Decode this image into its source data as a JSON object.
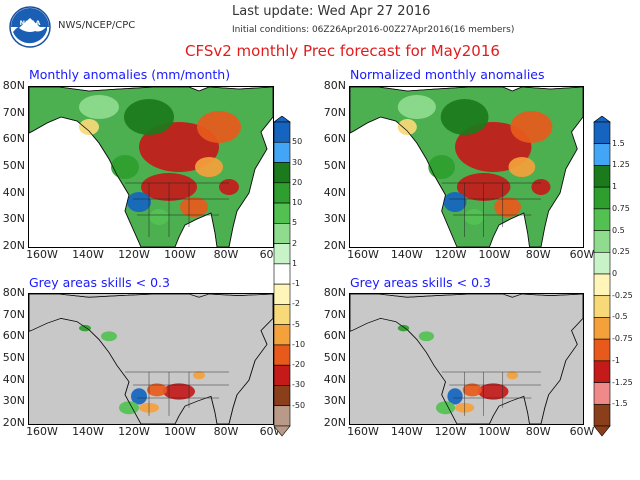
{
  "header": {
    "org": "NWS/NCEP/CPC",
    "last_update": "Last update: Wed Apr 27 2016",
    "initial_conditions": "Initial conditions: 06Z26Apr2016-00Z27Apr2016(16 members)",
    "main_title": "CFSv2 monthly Prec forecast for May2016"
  },
  "logo": {
    "text": "NOAA",
    "icon": "noaa-logo-icon"
  },
  "panels": [
    {
      "title": "Monthly anomalies (mm/month)"
    },
    {
      "title": "Normalized monthly anomalies"
    },
    {
      "title": "Grey areas skills < 0.3"
    },
    {
      "title": "Grey areas skills < 0.3"
    }
  ],
  "lat_ticks": [
    "80N",
    "70N",
    "60N",
    "50N",
    "40N",
    "30N",
    "20N"
  ],
  "lon_ticks": [
    "160W",
    "140W",
    "120W",
    "100W",
    "80W",
    "60W"
  ],
  "colorbar_left": {
    "labels": [
      "50",
      "30",
      "20",
      "10",
      "5",
      "2",
      "1",
      "-1",
      "-2",
      "-5",
      "-10",
      "-20",
      "-30",
      "-50"
    ],
    "colors": [
      "#1565c0",
      "#42a5f5",
      "#1b7a1b",
      "#2e9e2e",
      "#52c152",
      "#8fdc8f",
      "#c8f2c8",
      "#ffffff",
      "#fff5b8",
      "#f7d977",
      "#f4a13c",
      "#e85a1c",
      "#c41a1a",
      "#8a3e1a",
      "#b99a88"
    ]
  },
  "colorbar_right": {
    "labels": [
      "1.5",
      "1.25",
      "1",
      "0.75",
      "0.5",
      "0.25",
      "0",
      "-0.25",
      "-0.5",
      "-0.75",
      "-1",
      "-1.25",
      "-1.5"
    ],
    "colors": [
      "#1565c0",
      "#42a5f5",
      "#1b7a1b",
      "#2e9e2e",
      "#52c152",
      "#8fdc8f",
      "#c8f2c8",
      "#fff5b8",
      "#f7d977",
      "#f4a13c",
      "#e85a1c",
      "#c41a1a",
      "#f08a8a",
      "#8a3e1a"
    ]
  },
  "colors": {
    "ocean": "#ffffff",
    "grey_mask": "#c8c8c8",
    "title_red": "#e01c1c",
    "title_blue": "#1a1aff"
  }
}
